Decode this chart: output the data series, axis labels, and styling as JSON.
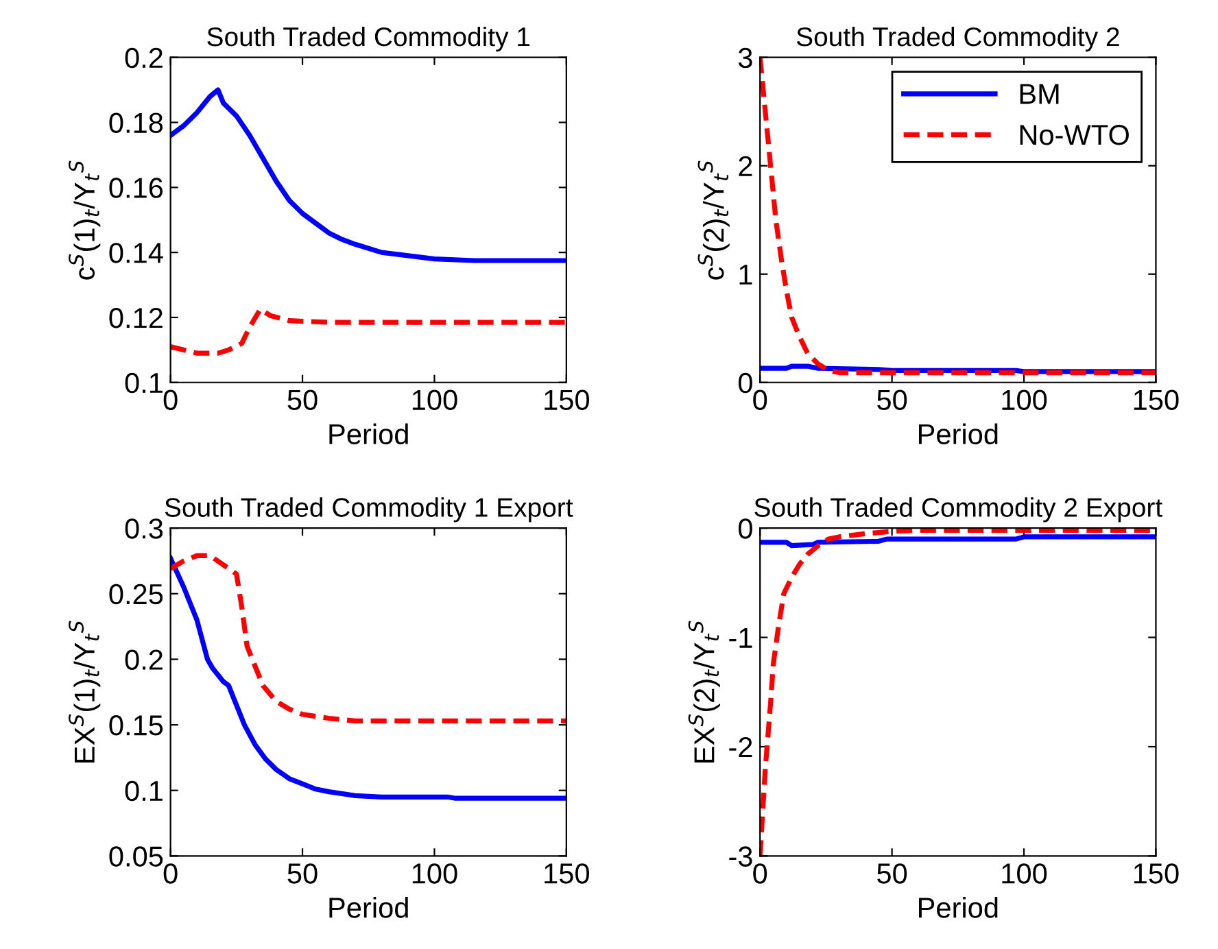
{
  "chart_data": [
    {
      "type": "line",
      "title": "South Traded Commodity 1",
      "xlabel": "Period",
      "ylabel": "c$^{S}$(1)$_{t}$/Y$_{t}$$^{S}$",
      "xlim": [
        0,
        150
      ],
      "xticks": [
        0,
        50,
        100,
        150
      ],
      "ylim": [
        0.1,
        0.2
      ],
      "yticks": [
        0.1,
        0.12,
        0.14,
        0.16,
        0.18,
        0.2
      ],
      "grid": false,
      "legend": false,
      "series": [
        {
          "color": "#0000ff",
          "line_style": "solid",
          "x": [
            0,
            5,
            10,
            15,
            18,
            20,
            25,
            30,
            35,
            40,
            45,
            50,
            55,
            60,
            65,
            70,
            80,
            90,
            100,
            115,
            150
          ],
          "values": [
            0.176,
            0.179,
            0.183,
            0.188,
            0.19,
            0.186,
            0.182,
            0.176,
            0.169,
            0.162,
            0.156,
            0.152,
            0.149,
            0.146,
            0.144,
            0.1425,
            0.14,
            0.139,
            0.138,
            0.1375,
            0.1375
          ]
        },
        {
          "color": "#ff0000",
          "line_style": "dashed",
          "x": [
            0,
            5,
            10,
            18,
            22,
            27,
            30,
            34,
            38,
            45,
            60,
            150
          ],
          "values": [
            0.111,
            0.11,
            0.109,
            0.109,
            0.11,
            0.112,
            0.117,
            0.1225,
            0.1205,
            0.119,
            0.1185,
            0.1185
          ]
        }
      ]
    },
    {
      "type": "line",
      "title": "South Traded Commodity 2",
      "xlabel": "Period",
      "ylabel": "c$^{S}$(2)$_{t}$/Y$_{t}$$^{S}$",
      "xlim": [
        0,
        150
      ],
      "xticks": [
        0,
        50,
        100,
        150
      ],
      "ylim": [
        0,
        3
      ],
      "yticks": [
        0,
        1,
        2,
        3
      ],
      "grid": false,
      "legend": "top right",
      "series": [
        {
          "name": "BM",
          "color": "#0000ff",
          "line_style": "solid",
          "x": [
            0,
            10,
            12,
            18,
            22,
            45,
            50,
            97,
            100,
            150
          ],
          "values": [
            0.13,
            0.13,
            0.15,
            0.15,
            0.13,
            0.12,
            0.11,
            0.11,
            0.1,
            0.1
          ]
        },
        {
          "name": "No-WTO",
          "color": "#ff0000",
          "line_style": "dashed",
          "x": [
            0,
            2,
            4,
            6,
            8,
            10,
            12,
            15,
            18,
            22,
            26,
            30,
            50,
            150
          ],
          "values": [
            3.0,
            2.5,
            2.0,
            1.5,
            1.15,
            0.85,
            0.6,
            0.42,
            0.27,
            0.17,
            0.11,
            0.09,
            0.09,
            0.09
          ]
        }
      ]
    },
    {
      "type": "line",
      "title": "South Traded Commodity 1 Export",
      "xlabel": "Period",
      "ylabel": "EX$^{S}$(1)$_{t}$/Y$_{t}$$^{S}$",
      "xlim": [
        0,
        150
      ],
      "xticks": [
        0,
        50,
        100,
        150
      ],
      "ylim": [
        0.05,
        0.3
      ],
      "yticks": [
        0.05,
        0.1,
        0.15,
        0.2,
        0.25,
        0.3
      ],
      "grid": false,
      "legend": false,
      "series": [
        {
          "color": "#0000ff",
          "line_style": "solid",
          "x": [
            0,
            5,
            10,
            14,
            16,
            20,
            22,
            25,
            28,
            32,
            36,
            40,
            45,
            50,
            55,
            60,
            70,
            80,
            105,
            108,
            150
          ],
          "values": [
            0.277,
            0.255,
            0.23,
            0.2,
            0.193,
            0.183,
            0.18,
            0.165,
            0.15,
            0.135,
            0.124,
            0.116,
            0.109,
            0.105,
            0.101,
            0.099,
            0.096,
            0.095,
            0.095,
            0.094,
            0.094
          ]
        },
        {
          "color": "#ff0000",
          "line_style": "dashed",
          "x": [
            0,
            5,
            10,
            15,
            20,
            25,
            27,
            29,
            32,
            35,
            40,
            45,
            50,
            60,
            70,
            150
          ],
          "values": [
            0.269,
            0.275,
            0.279,
            0.279,
            0.272,
            0.265,
            0.24,
            0.21,
            0.195,
            0.18,
            0.168,
            0.162,
            0.158,
            0.155,
            0.153,
            0.153
          ]
        }
      ]
    },
    {
      "type": "line",
      "title": "South Traded Commodity 2 Export",
      "xlabel": "Period",
      "ylabel": "EX$^{S}$(2)$_{t}$/Y$_{t}$$^{S}$",
      "xlim": [
        0,
        150
      ],
      "xticks": [
        0,
        50,
        100,
        150
      ],
      "ylim": [
        -3,
        0
      ],
      "yticks": [
        -3,
        -2,
        -1,
        0
      ],
      "grid": false,
      "legend": false,
      "series": [
        {
          "color": "#0000ff",
          "line_style": "solid",
          "x": [
            0,
            10,
            12,
            20,
            22,
            45,
            48,
            97,
            100,
            150
          ],
          "values": [
            -0.13,
            -0.13,
            -0.16,
            -0.15,
            -0.13,
            -0.12,
            -0.1,
            -0.1,
            -0.08,
            -0.08
          ]
        },
        {
          "color": "#ff0000",
          "line_style": "dashed",
          "x": [
            0,
            1,
            2,
            4,
            5,
            7,
            9,
            12,
            15,
            18,
            22,
            26,
            30,
            40,
            50,
            60,
            150
          ],
          "values": [
            -3.0,
            -2.6,
            -2.2,
            -1.6,
            -1.25,
            -0.9,
            -0.6,
            -0.45,
            -0.33,
            -0.24,
            -0.16,
            -0.1,
            -0.08,
            -0.05,
            -0.03,
            -0.02,
            -0.02
          ]
        }
      ]
    }
  ]
}
